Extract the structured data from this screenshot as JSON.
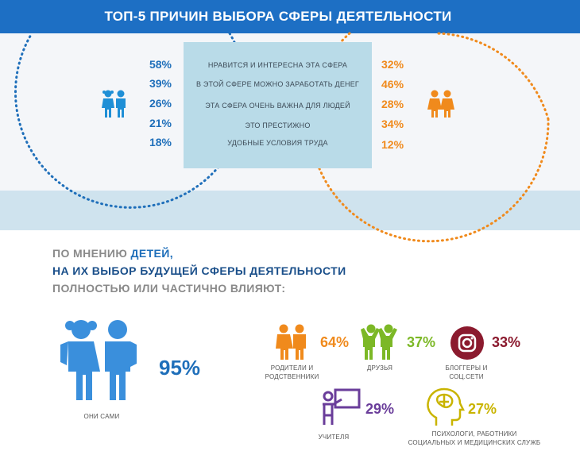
{
  "title": "ТОП-5 ПРИЧИН ВЫБОРА СФЕРЫ ДЕЯТЕЛЬНОСТИ",
  "reasons": [
    {
      "text": "НРАВИТСЯ И ИНТЕРЕСНА ЭТА СФЕРА",
      "boys": "58%",
      "girls": "32%"
    },
    {
      "text": "В ЭТОЙ СФЕРЕ МОЖНО ЗАРАБОТАТЬ ДЕНЕГ",
      "boys": "39%",
      "girls": "46%"
    },
    {
      "text": "ЭТА СФЕРА ОЧЕНЬ ВАЖНА ДЛЯ ЛЮДЕЙ",
      "boys": "26%",
      "girls": "28%"
    },
    {
      "text": "ЭТО ПРЕСТИЖНО",
      "boys": "21%",
      "girls": "34%"
    },
    {
      "text": "УДОБНЫЕ УСЛОВИЯ ТРУДА",
      "boys": "18%",
      "girls": "12%"
    }
  ],
  "headline": {
    "line1_a": "ПО МНЕНИЮ ",
    "line1_b": "ДЕТЕЙ,",
    "line2": "НА ИХ ВЫБОР БУДУЩЕЙ СФЕРЫ ДЕЯТЕЛЬНОСТИ",
    "line3": "ПОЛНОСТЬЮ ИЛИ ЧАСТИЧНО ВЛИЯЮТ:"
  },
  "self": {
    "label": "ОНИ САМИ",
    "value": "95%"
  },
  "influencers": {
    "parents": {
      "label_1": "РОДИТЕЛИ И",
      "label_2": "РОДСТВЕННИКИ",
      "value": "64%"
    },
    "friends": {
      "label": "ДРУЗЬЯ",
      "value": "37%"
    },
    "bloggers": {
      "label_1": "БЛОГГЕРЫ И",
      "label_2": "СОЦ.СЕТИ",
      "value": "33%"
    },
    "teachers": {
      "label": "УЧИТЕЛЯ",
      "value": "29%"
    },
    "psychologists": {
      "label_1": "ПСИХОЛОГИ, РАБОТНИКИ",
      "label_2": "СОЦИАЛЬНЫХ И МЕДИЦИНСКИХ СЛУЖБ",
      "value": "27%"
    }
  },
  "icons": [
    "boy-girl-icon",
    "girls-icon",
    "children-icon",
    "parents-icon",
    "friends-icon",
    "instagram-icon",
    "teacher-icon",
    "brain-head-icon"
  ],
  "colors": {
    "header": "#1d6fc4",
    "boys": "#1f6fba",
    "girls": "#f08a1c",
    "reason_box": "#b9dbe8",
    "band": "#cfe3ee",
    "headline_gray": "#8a8a8a",
    "headline_blue": "#1f6fba",
    "headline_dark": "#1a4f8a",
    "parents": "#f08a1c",
    "friends": "#7cb826",
    "bloggers": "#8b1a2e",
    "teachers": "#6a3d9a",
    "psychologists": "#c9b400"
  }
}
